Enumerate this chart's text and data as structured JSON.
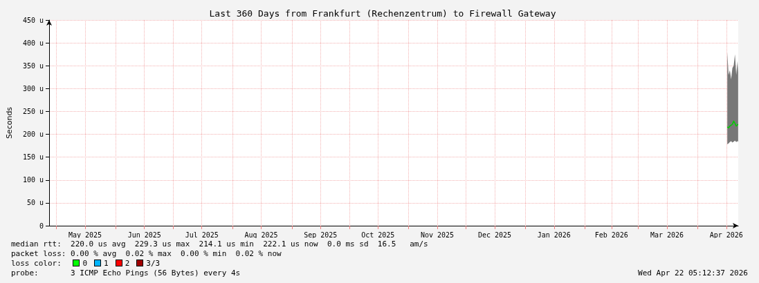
{
  "chart_data": {
    "type": "line",
    "title": "Last 360 Days from Frankfurt (Rechenzentrum) to Firewall Gateway",
    "ylabel": "Seconds",
    "x": [
      "2026-04-16T12:00",
      "2026-04-17T04:00",
      "2026-04-17T20:00",
      "2026-04-18T12:00",
      "2026-04-19T04:00",
      "2026-04-19T20:00",
      "2026-04-20T12:00",
      "2026-04-21T04:00",
      "2026-04-21T20:00",
      "2026-04-22T04:00"
    ],
    "series": [
      {
        "color": "#00cc00",
        "values": [
          216,
          214,
          218,
          220,
          222,
          229,
          224,
          218,
          221,
          222
        ],
        "lower": [
          178,
          180,
          183,
          185,
          182,
          184,
          186,
          183,
          185,
          184
        ],
        "upper": [
          380,
          330,
          340,
          320,
          345,
          350,
          375,
          330,
          360,
          335
        ]
      }
    ],
    "xlim": [
      "2025-04-27T05:12",
      "2026-04-22T05:12"
    ],
    "xticks": [
      {
        "value": "2025-05-01",
        "label": null
      },
      {
        "value": "2025-05-16",
        "label": "May 2025"
      },
      {
        "value": "2025-06-01",
        "label": null
      },
      {
        "value": "2025-06-16",
        "label": "Jun 2025"
      },
      {
        "value": "2025-07-01",
        "label": null
      },
      {
        "value": "2025-07-16",
        "label": "Jul 2025"
      },
      {
        "value": "2025-08-01",
        "label": null
      },
      {
        "value": "2025-08-16",
        "label": "Aug 2025"
      },
      {
        "value": "2025-09-01",
        "label": null
      },
      {
        "value": "2025-09-16",
        "label": "Sep 2025"
      },
      {
        "value": "2025-10-01",
        "label": null
      },
      {
        "value": "2025-10-16",
        "label": "Oct 2025"
      },
      {
        "value": "2025-11-01",
        "label": null
      },
      {
        "value": "2025-11-16",
        "label": "Nov 2025"
      },
      {
        "value": "2025-12-01",
        "label": null
      },
      {
        "value": "2025-12-16",
        "label": "Dec 2025"
      },
      {
        "value": "2026-01-01",
        "label": null
      },
      {
        "value": "2026-01-16",
        "label": "Jan 2026"
      },
      {
        "value": "2026-02-01",
        "label": null
      },
      {
        "value": "2026-02-15",
        "label": "Feb 2026"
      },
      {
        "value": "2026-03-01",
        "label": null
      },
      {
        "value": "2026-03-16",
        "label": "Mar 2026"
      },
      {
        "value": "2026-04-01",
        "label": null
      },
      {
        "value": "2026-04-16",
        "label": "Apr 2026"
      }
    ],
    "ylim": [
      0,
      450
    ],
    "yticks": [
      0,
      {
        "value": 50,
        "label": "50 u"
      },
      {
        "value": 100,
        "label": "100 u"
      },
      {
        "value": 150,
        "label": "150 u"
      },
      {
        "value": 200,
        "label": "200 u"
      },
      {
        "value": 250,
        "label": "250 u"
      },
      {
        "value": 300,
        "label": "300 u"
      },
      {
        "value": 350,
        "label": "350 u"
      },
      {
        "value": 400,
        "label": "400 u"
      },
      {
        "value": 450,
        "label": "450 u"
      }
    ],
    "grid": true,
    "marker": "none",
    "line_style": "solid",
    "annotations": [
      "median rtt:  220.0 us avg  229.3 us max  214.1 us min  222.1 us now  0.0 ms sd  16.5   am/s",
      "packet loss: 0.00 % avg  0.02 % max  0.00 % min  0.02 % now",
      "loss color:",
      "0",
      "1",
      "2",
      "3/3",
      "probe:       3 ICMP Echo Pings (56 Bytes) every 4s",
      "Wed Apr 22 05:12:37 2026"
    ]
  }
}
